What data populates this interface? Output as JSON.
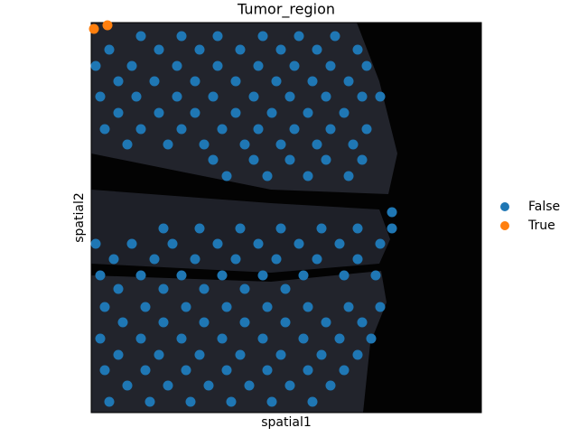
{
  "chart_data": {
    "type": "scatter",
    "title": "Tumor_region",
    "x_label": "spatial1",
    "y_label": "spatial2",
    "xlim": [
      0,
      432
    ],
    "ylim": [
      432,
      0
    ],
    "legend": "right",
    "series": [
      {
        "name": "False",
        "color": "#1f77b4",
        "x": [
          55,
          100,
          140,
          190,
          230,
          270,
          20,
          75,
          120,
          165,
          210,
          250,
          295,
          5,
          45,
          95,
          140,
          185,
          225,
          265,
          305,
          30,
          70,
          115,
          160,
          205,
          245,
          285,
          10,
          50,
          95,
          135,
          180,
          220,
          260,
          300,
          320,
          30,
          75,
          115,
          160,
          200,
          240,
          280,
          15,
          55,
          100,
          145,
          185,
          225,
          265,
          305,
          40,
          85,
          125,
          170,
          210,
          250,
          290,
          135,
          180,
          220,
          260,
          300,
          150,
          195,
          240,
          285,
          333,
          80,
          120,
          165,
          210,
          255,
          295,
          333,
          5,
          45,
          90,
          140,
          185,
          230,
          275,
          320,
          25,
          70,
          115,
          160,
          205,
          250,
          295,
          10,
          55,
          100,
          145,
          190,
          235,
          280,
          315,
          30,
          80,
          125,
          170,
          215,
          15,
          60,
          105,
          150,
          195,
          240,
          285,
          320,
          35,
          80,
          125,
          170,
          215,
          260,
          300,
          10,
          55,
          100,
          145,
          190,
          235,
          275,
          310,
          30,
          75,
          120,
          165,
          210,
          255,
          295,
          15,
          60,
          105,
          150,
          195,
          240,
          280,
          40,
          85,
          130,
          175,
          220,
          265,
          20,
          65,
          110,
          155,
          200,
          245
        ],
        "values": [
          15,
          15,
          15,
          15,
          15,
          15,
          30,
          30,
          30,
          30,
          30,
          30,
          30,
          48,
          48,
          48,
          48,
          48,
          48,
          48,
          48,
          65,
          65,
          65,
          65,
          65,
          65,
          65,
          82,
          82,
          82,
          82,
          82,
          82,
          82,
          82,
          82,
          100,
          100,
          100,
          100,
          100,
          100,
          100,
          118,
          118,
          118,
          118,
          118,
          118,
          118,
          118,
          135,
          135,
          135,
          135,
          135,
          135,
          135,
          152,
          152,
          152,
          152,
          152,
          170,
          170,
          170,
          170,
          210,
          228,
          228,
          228,
          228,
          228,
          228,
          228,
          245,
          245,
          245,
          245,
          245,
          245,
          245,
          245,
          262,
          262,
          262,
          262,
          262,
          262,
          262,
          280,
          280,
          280,
          280,
          280,
          280,
          280,
          280,
          295,
          295,
          295,
          295,
          295,
          315,
          315,
          315,
          315,
          315,
          315,
          315,
          315,
          332,
          332,
          332,
          332,
          332,
          332,
          332,
          350,
          350,
          350,
          350,
          350,
          350,
          350,
          350,
          368,
          368,
          368,
          368,
          368,
          368,
          368,
          385,
          385,
          385,
          385,
          385,
          385,
          385,
          402,
          402,
          402,
          402,
          402,
          402,
          420,
          420,
          420,
          420,
          420,
          420
        ]
      },
      {
        "name": "True",
        "color": "#ff7f0e",
        "x": [
          3,
          18
        ],
        "values": [
          7,
          3
        ]
      }
    ]
  }
}
